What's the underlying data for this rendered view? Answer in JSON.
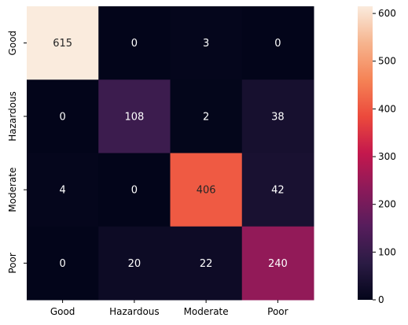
{
  "chart_data": {
    "type": "heatmap",
    "title": "",
    "xlabel": "",
    "ylabel": "",
    "x_categories": [
      "Good",
      "Hazardous",
      "Moderate",
      "Poor"
    ],
    "y_categories": [
      "Good",
      "Hazardous",
      "Moderate",
      "Poor"
    ],
    "values": [
      [
        615,
        0,
        3,
        0
      ],
      [
        0,
        108,
        2,
        38
      ],
      [
        4,
        0,
        406,
        42
      ],
      [
        0,
        20,
        22,
        240
      ]
    ],
    "colorbar": {
      "ticks": [
        0,
        100,
        200,
        300,
        400,
        500,
        600
      ],
      "tick_labels": [
        "0",
        "100",
        "200",
        "300",
        "400",
        "500",
        "600"
      ],
      "range": [
        0,
        615
      ],
      "colormap": "rocket"
    },
    "annotations_shown": true,
    "grid": false
  }
}
